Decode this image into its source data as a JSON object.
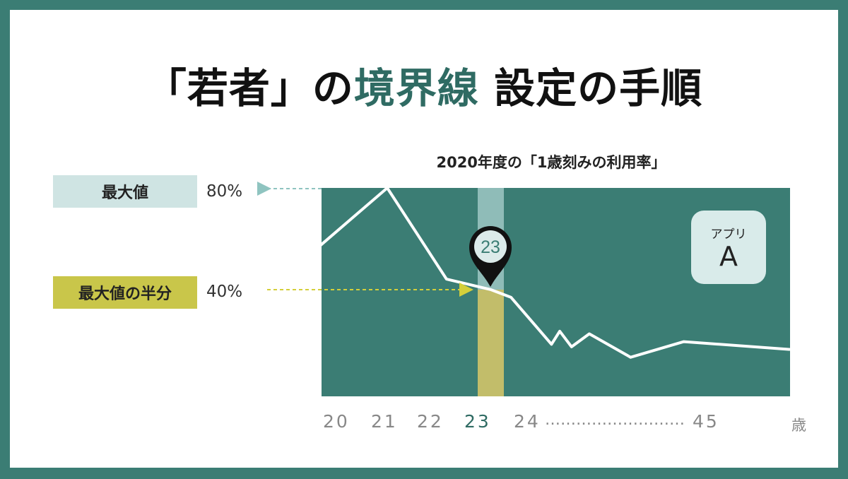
{
  "title": {
    "part1": "「若者」の",
    "part2": "境界線",
    "part3": " 設定の手順"
  },
  "labels": {
    "max": "最大値",
    "half": "最大値の半分",
    "max_pct": "80%",
    "half_pct": "40%"
  },
  "app": {
    "small": "アプリ",
    "big": "A"
  },
  "marker_label": "23",
  "colors": {
    "frame": "#3b7d74",
    "plot_bg": "#3b7d74",
    "line": "#ffffff",
    "highlight_upper": "#8fbcb8",
    "highlight_lower": "#c2bd6a",
    "max_label_bg": "#cfe4e3",
    "half_label_bg": "#c9c64a",
    "accent_text": "#2f6b63"
  },
  "chart_data": {
    "type": "line",
    "title": "2020年度の「1歳刻みの利用率」",
    "x_unit": "歳",
    "x_tick_labels": [
      "20",
      "21",
      "22",
      "23",
      "24",
      "45"
    ],
    "x_tick_dots": "………………………",
    "ylim": [
      0,
      100
    ],
    "grid": false,
    "highlight_age": 23,
    "max_value": 80,
    "half_value": 40,
    "points": [
      {
        "x": 19.65,
        "y": 57
      },
      {
        "x": 21.0,
        "y": 80
      },
      {
        "x": 22.15,
        "y": 45
      },
      {
        "x": 23.0,
        "y": 41
      },
      {
        "x": 23.4,
        "y": 38
      },
      {
        "x": 24.8,
        "y": 20
      },
      {
        "x": 25.5,
        "y": 25
      },
      {
        "x": 26.5,
        "y": 19
      },
      {
        "x": 28.0,
        "y": 24
      },
      {
        "x": 31.5,
        "y": 15
      },
      {
        "x": 36.0,
        "y": 21
      },
      {
        "x": 45.0,
        "y": 18
      }
    ]
  }
}
